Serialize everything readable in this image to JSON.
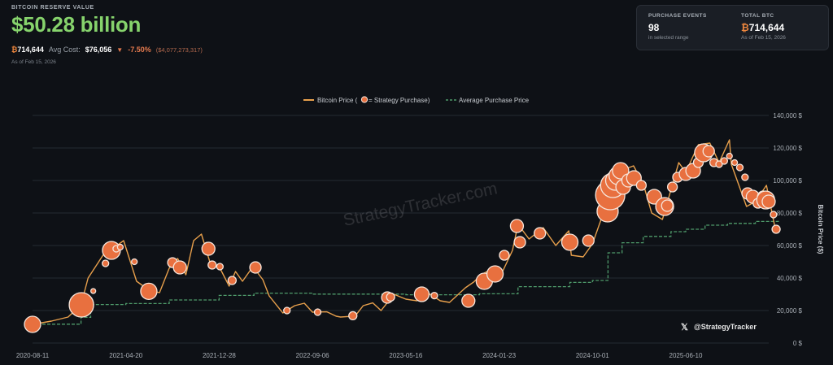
{
  "header": {
    "section_label": "BITCOIN RESERVE VALUE",
    "reserve_value": "$50.28 billion",
    "btc_symbol": "₿",
    "btc_holdings": "714,644",
    "avg_cost_label": "Avg Cost:",
    "avg_cost_value": "$76,056",
    "change_percent": "-7.50%",
    "change_amount": "($4,077,273,317)",
    "as_of": "As of Feb 15, 2026"
  },
  "stats": {
    "purchase_events_label": "PURCHASE EVENTS",
    "purchase_events_value": "98",
    "purchase_events_sub": "in selected range",
    "total_btc_label": "TOTAL BTC",
    "total_btc_symbol": "₿",
    "total_btc_value": "714,644",
    "total_btc_sub": "As of Feb 15, 2026"
  },
  "colors": {
    "price_line": "#e8a04c",
    "purchase_bubble": "#e8703f",
    "bubble_stroke": "#f6e6dc",
    "avg_line": "#4e9a6a",
    "accent_green": "#86d36c",
    "negative": "#e57a4e"
  },
  "chart_data": {
    "type": "line",
    "legend": {
      "price_label": "Bitcoin Price (",
      "price_label_suffix": " = Strategy Purchase)",
      "avg_label": "Average Purchase Price",
      "placement": "top-center"
    },
    "ylabel": "Bitcoin Price ($)",
    "y_ticks": [
      "0 $",
      "20,000 $",
      "40,000 $",
      "60,000 $",
      "80,000 $",
      "100,000 $",
      "120,000 $",
      "140,000 $"
    ],
    "ylim": [
      0,
      140000
    ],
    "x_ticks": [
      "2020-08-11",
      "2021-04-20",
      "2021-12-28",
      "2022-09-06",
      "2023-05-16",
      "2024-01-23",
      "2024-10-01",
      "2025-06-10"
    ],
    "grid": true,
    "watermark": "StrategyTracker.com",
    "handle": "@StrategyTracker",
    "series": [
      {
        "name": "Bitcoin Price",
        "kind": "price",
        "x": [
          "2020-08-11",
          "2020-10-01",
          "2020-11-15",
          "2020-12-20",
          "2021-01-08",
          "2021-02-20",
          "2021-03-15",
          "2021-04-14",
          "2021-05-19",
          "2021-06-22",
          "2021-07-20",
          "2021-08-15",
          "2021-09-07",
          "2021-09-29",
          "2021-10-20",
          "2021-11-10",
          "2021-12-04",
          "2021-12-28",
          "2022-01-24",
          "2022-02-10",
          "2022-03-01",
          "2022-03-29",
          "2022-04-25",
          "2022-05-12",
          "2022-06-18",
          "2022-07-20",
          "2022-08-15",
          "2022-09-06",
          "2022-10-15",
          "2022-11-09",
          "2022-11-21",
          "2022-12-30",
          "2023-01-21",
          "2023-02-16",
          "2023-03-10",
          "2023-04-14",
          "2023-05-16",
          "2023-06-15",
          "2023-07-14",
          "2023-08-17",
          "2023-09-11",
          "2023-10-24",
          "2023-11-15",
          "2023-12-05",
          "2024-01-11",
          "2024-01-23",
          "2024-02-28",
          "2024-03-14",
          "2024-04-13",
          "2024-05-21",
          "2024-06-24",
          "2024-07-29",
          "2024-08-05",
          "2024-09-06",
          "2024-10-01",
          "2024-11-12",
          "2024-12-17",
          "2025-01-20",
          "2025-02-15",
          "2025-03-10",
          "2025-04-08",
          "2025-05-22",
          "2025-06-10",
          "2025-07-14",
          "2025-08-14",
          "2025-09-08",
          "2025-10-06",
          "2025-10-11",
          "2025-11-21",
          "2025-12-15",
          "2026-01-14",
          "2026-02-05",
          "2026-02-15"
        ],
        "y": [
          11500,
          13500,
          16000,
          23500,
          40000,
          55000,
          58000,
          63000,
          38000,
          32500,
          31000,
          46000,
          52000,
          42000,
          63000,
          67000,
          49000,
          47000,
          35000,
          44000,
          38000,
          47000,
          39000,
          29000,
          18500,
          23000,
          24500,
          19000,
          19200,
          16500,
          16000,
          16600,
          23000,
          24700,
          20000,
          30000,
          27000,
          26000,
          31000,
          26000,
          25000,
          34000,
          37500,
          42000,
          46500,
          39500,
          57000,
          73000,
          64000,
          71000,
          60000,
          69000,
          54000,
          53000,
          61000,
          88000,
          106000,
          109000,
          98000,
          80000,
          76000,
          111000,
          105000,
          122000,
          123000,
          111000,
          125000,
          110000,
          84000,
          87000,
          97000,
          72000,
          68000
        ]
      },
      {
        "name": "Average Purchase Price",
        "kind": "avg",
        "x": [
          "2020-08-11",
          "2020-12-20",
          "2021-01-15",
          "2021-04-20",
          "2021-08-15",
          "2021-12-28",
          "2022-04-01",
          "2022-09-06",
          "2023-05-16",
          "2023-12-01",
          "2024-03-14",
          "2024-08-01",
          "2024-10-01",
          "2024-11-12",
          "2024-12-20",
          "2025-02-15",
          "2025-05-01",
          "2025-06-10",
          "2025-08-01",
          "2025-10-01",
          "2025-12-15",
          "2026-02-15"
        ],
        "y": [
          11600,
          15800,
          23700,
          24300,
          26500,
          29300,
          30700,
          30100,
          29700,
          30300,
          34700,
          37300,
          38500,
          55500,
          61700,
          65600,
          68500,
          70000,
          72500,
          73600,
          74800,
          76056
        ]
      }
    ],
    "purchases": [
      {
        "date": "2020-08-11",
        "price": 11500,
        "size": 10
      },
      {
        "date": "2020-12-21",
        "price": 23500,
        "size": 15
      },
      {
        "date": "2021-01-22",
        "price": 32000,
        "size": 3
      },
      {
        "date": "2021-02-24",
        "price": 49000,
        "size": 4
      },
      {
        "date": "2021-03-12",
        "price": 57000,
        "size": 11
      },
      {
        "date": "2021-03-25",
        "price": 58000,
        "size": 4
      },
      {
        "date": "2021-04-05",
        "price": 59000,
        "size": 3.5
      },
      {
        "date": "2021-05-13",
        "price": 50000,
        "size": 3.5
      },
      {
        "date": "2021-06-21",
        "price": 31800,
        "size": 10
      },
      {
        "date": "2021-08-24",
        "price": 49500,
        "size": 6
      },
      {
        "date": "2021-09-13",
        "price": 46500,
        "size": 8
      },
      {
        "date": "2021-11-29",
        "price": 58000,
        "size": 8
      },
      {
        "date": "2021-12-09",
        "price": 48000,
        "size": 5
      },
      {
        "date": "2021-12-30",
        "price": 47000,
        "size": 4
      },
      {
        "date": "2022-02-01",
        "price": 38500,
        "size": 5
      },
      {
        "date": "2022-04-05",
        "price": 46500,
        "size": 7
      },
      {
        "date": "2022-06-29",
        "price": 20000,
        "size": 4
      },
      {
        "date": "2022-09-20",
        "price": 19000,
        "size": 4
      },
      {
        "date": "2022-12-24",
        "price": 16800,
        "size": 5
      },
      {
        "date": "2023-03-27",
        "price": 28000,
        "size": 7
      },
      {
        "date": "2023-04-05",
        "price": 28300,
        "size": 5
      },
      {
        "date": "2023-06-28",
        "price": 30000,
        "size": 9
      },
      {
        "date": "2023-08-01",
        "price": 29200,
        "size": 4
      },
      {
        "date": "2023-11-01",
        "price": 26000,
        "size": 8
      },
      {
        "date": "2023-12-14",
        "price": 38000,
        "size": 10
      },
      {
        "date": "2024-01-12",
        "price": 42500,
        "size": 10
      },
      {
        "date": "2024-02-06",
        "price": 54000,
        "size": 6
      },
      {
        "date": "2024-03-11",
        "price": 72000,
        "size": 8
      },
      {
        "date": "2024-03-19",
        "price": 62000,
        "size": 7
      },
      {
        "date": "2024-05-12",
        "price": 67500,
        "size": 7
      },
      {
        "date": "2024-08-01",
        "price": 62000,
        "size": 10
      },
      {
        "date": "2024-09-20",
        "price": 63000,
        "size": 7
      },
      {
        "date": "2024-11-11",
        "price": 81000,
        "size": 13
      },
      {
        "date": "2024-11-18",
        "price": 91000,
        "size": 18
      },
      {
        "date": "2024-11-25",
        "price": 97000,
        "size": 15
      },
      {
        "date": "2024-12-02",
        "price": 100000,
        "size": 12
      },
      {
        "date": "2024-12-09",
        "price": 103000,
        "size": 11
      },
      {
        "date": "2024-12-16",
        "price": 106000,
        "size": 10
      },
      {
        "date": "2024-12-23",
        "price": 96000,
        "size": 9
      },
      {
        "date": "2025-01-06",
        "price": 100000,
        "size": 8
      },
      {
        "date": "2025-01-21",
        "price": 101500,
        "size": 9
      },
      {
        "date": "2025-02-10",
        "price": 97000,
        "size": 6
      },
      {
        "date": "2025-03-17",
        "price": 90000,
        "size": 9
      },
      {
        "date": "2025-04-14",
        "price": 84000,
        "size": 11
      },
      {
        "date": "2025-04-21",
        "price": 84500,
        "size": 7
      },
      {
        "date": "2025-05-05",
        "price": 96000,
        "size": 6
      },
      {
        "date": "2025-05-19",
        "price": 102000,
        "size": 6
      },
      {
        "date": "2025-06-10",
        "price": 104000,
        "size": 8
      },
      {
        "date": "2025-06-30",
        "price": 106000,
        "size": 9
      },
      {
        "date": "2025-07-14",
        "price": 111000,
        "size": 6
      },
      {
        "date": "2025-07-28",
        "price": 117000,
        "size": 11
      },
      {
        "date": "2025-08-11",
        "price": 118000,
        "size": 7
      },
      {
        "date": "2025-08-25",
        "price": 111000,
        "size": 5
      },
      {
        "date": "2025-09-08",
        "price": 110000,
        "size": 4
      },
      {
        "date": "2025-09-22",
        "price": 112000,
        "size": 4
      },
      {
        "date": "2025-10-06",
        "price": 115000,
        "size": 3.5
      },
      {
        "date": "2025-10-20",
        "price": 111000,
        "size": 3.5
      },
      {
        "date": "2025-11-03",
        "price": 108000,
        "size": 4
      },
      {
        "date": "2025-11-17",
        "price": 102000,
        "size": 4
      },
      {
        "date": "2025-11-24",
        "price": 92000,
        "size": 7
      },
      {
        "date": "2025-12-08",
        "price": 90000,
        "size": 8
      },
      {
        "date": "2025-12-22",
        "price": 86000,
        "size": 6
      },
      {
        "date": "2026-01-05",
        "price": 90000,
        "size": 7
      },
      {
        "date": "2026-01-12",
        "price": 88000,
        "size": 11
      },
      {
        "date": "2026-01-20",
        "price": 87000,
        "size": 8
      },
      {
        "date": "2026-02-02",
        "price": 79000,
        "size": 4
      },
      {
        "date": "2026-02-09",
        "price": 70000,
        "size": 5
      }
    ]
  }
}
